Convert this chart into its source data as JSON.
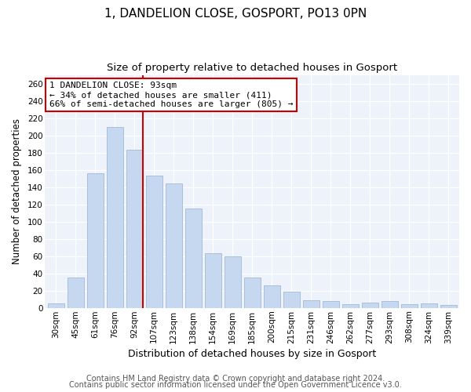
{
  "title": "1, DANDELION CLOSE, GOSPORT, PO13 0PN",
  "subtitle": "Size of property relative to detached houses in Gosport",
  "xlabel": "Distribution of detached houses by size in Gosport",
  "ylabel": "Number of detached properties",
  "bar_labels": [
    "30sqm",
    "45sqm",
    "61sqm",
    "76sqm",
    "92sqm",
    "107sqm",
    "123sqm",
    "138sqm",
    "154sqm",
    "169sqm",
    "185sqm",
    "200sqm",
    "215sqm",
    "231sqm",
    "246sqm",
    "262sqm",
    "277sqm",
    "293sqm",
    "308sqm",
    "324sqm",
    "339sqm"
  ],
  "bar_values": [
    5,
    35,
    156,
    210,
    183,
    153,
    144,
    115,
    63,
    60,
    35,
    26,
    19,
    9,
    8,
    4,
    6,
    8,
    4,
    5,
    3
  ],
  "bar_color": "#c5d8f0",
  "bar_edge_color": "#a0b8d8",
  "marker_index": 4,
  "vline_color": "#cc0000",
  "annotation_lines": [
    "1 DANDELION CLOSE: 93sqm",
    "← 34% of detached houses are smaller (411)",
    "66% of semi-detached houses are larger (805) →"
  ],
  "annotation_box_color": "#ffffff",
  "annotation_box_edge": "#cc0000",
  "ylim": [
    0,
    270
  ],
  "yticks": [
    0,
    20,
    40,
    60,
    80,
    100,
    120,
    140,
    160,
    180,
    200,
    220,
    240,
    260
  ],
  "footnote1": "Contains HM Land Registry data © Crown copyright and database right 2024.",
  "footnote2": "Contains public sector information licensed under the Open Government Licence v3.0.",
  "title_fontsize": 11,
  "subtitle_fontsize": 9.5,
  "xlabel_fontsize": 9,
  "ylabel_fontsize": 8.5,
  "tick_fontsize": 7.5,
  "annotation_fontsize": 8,
  "footnote_fontsize": 7
}
